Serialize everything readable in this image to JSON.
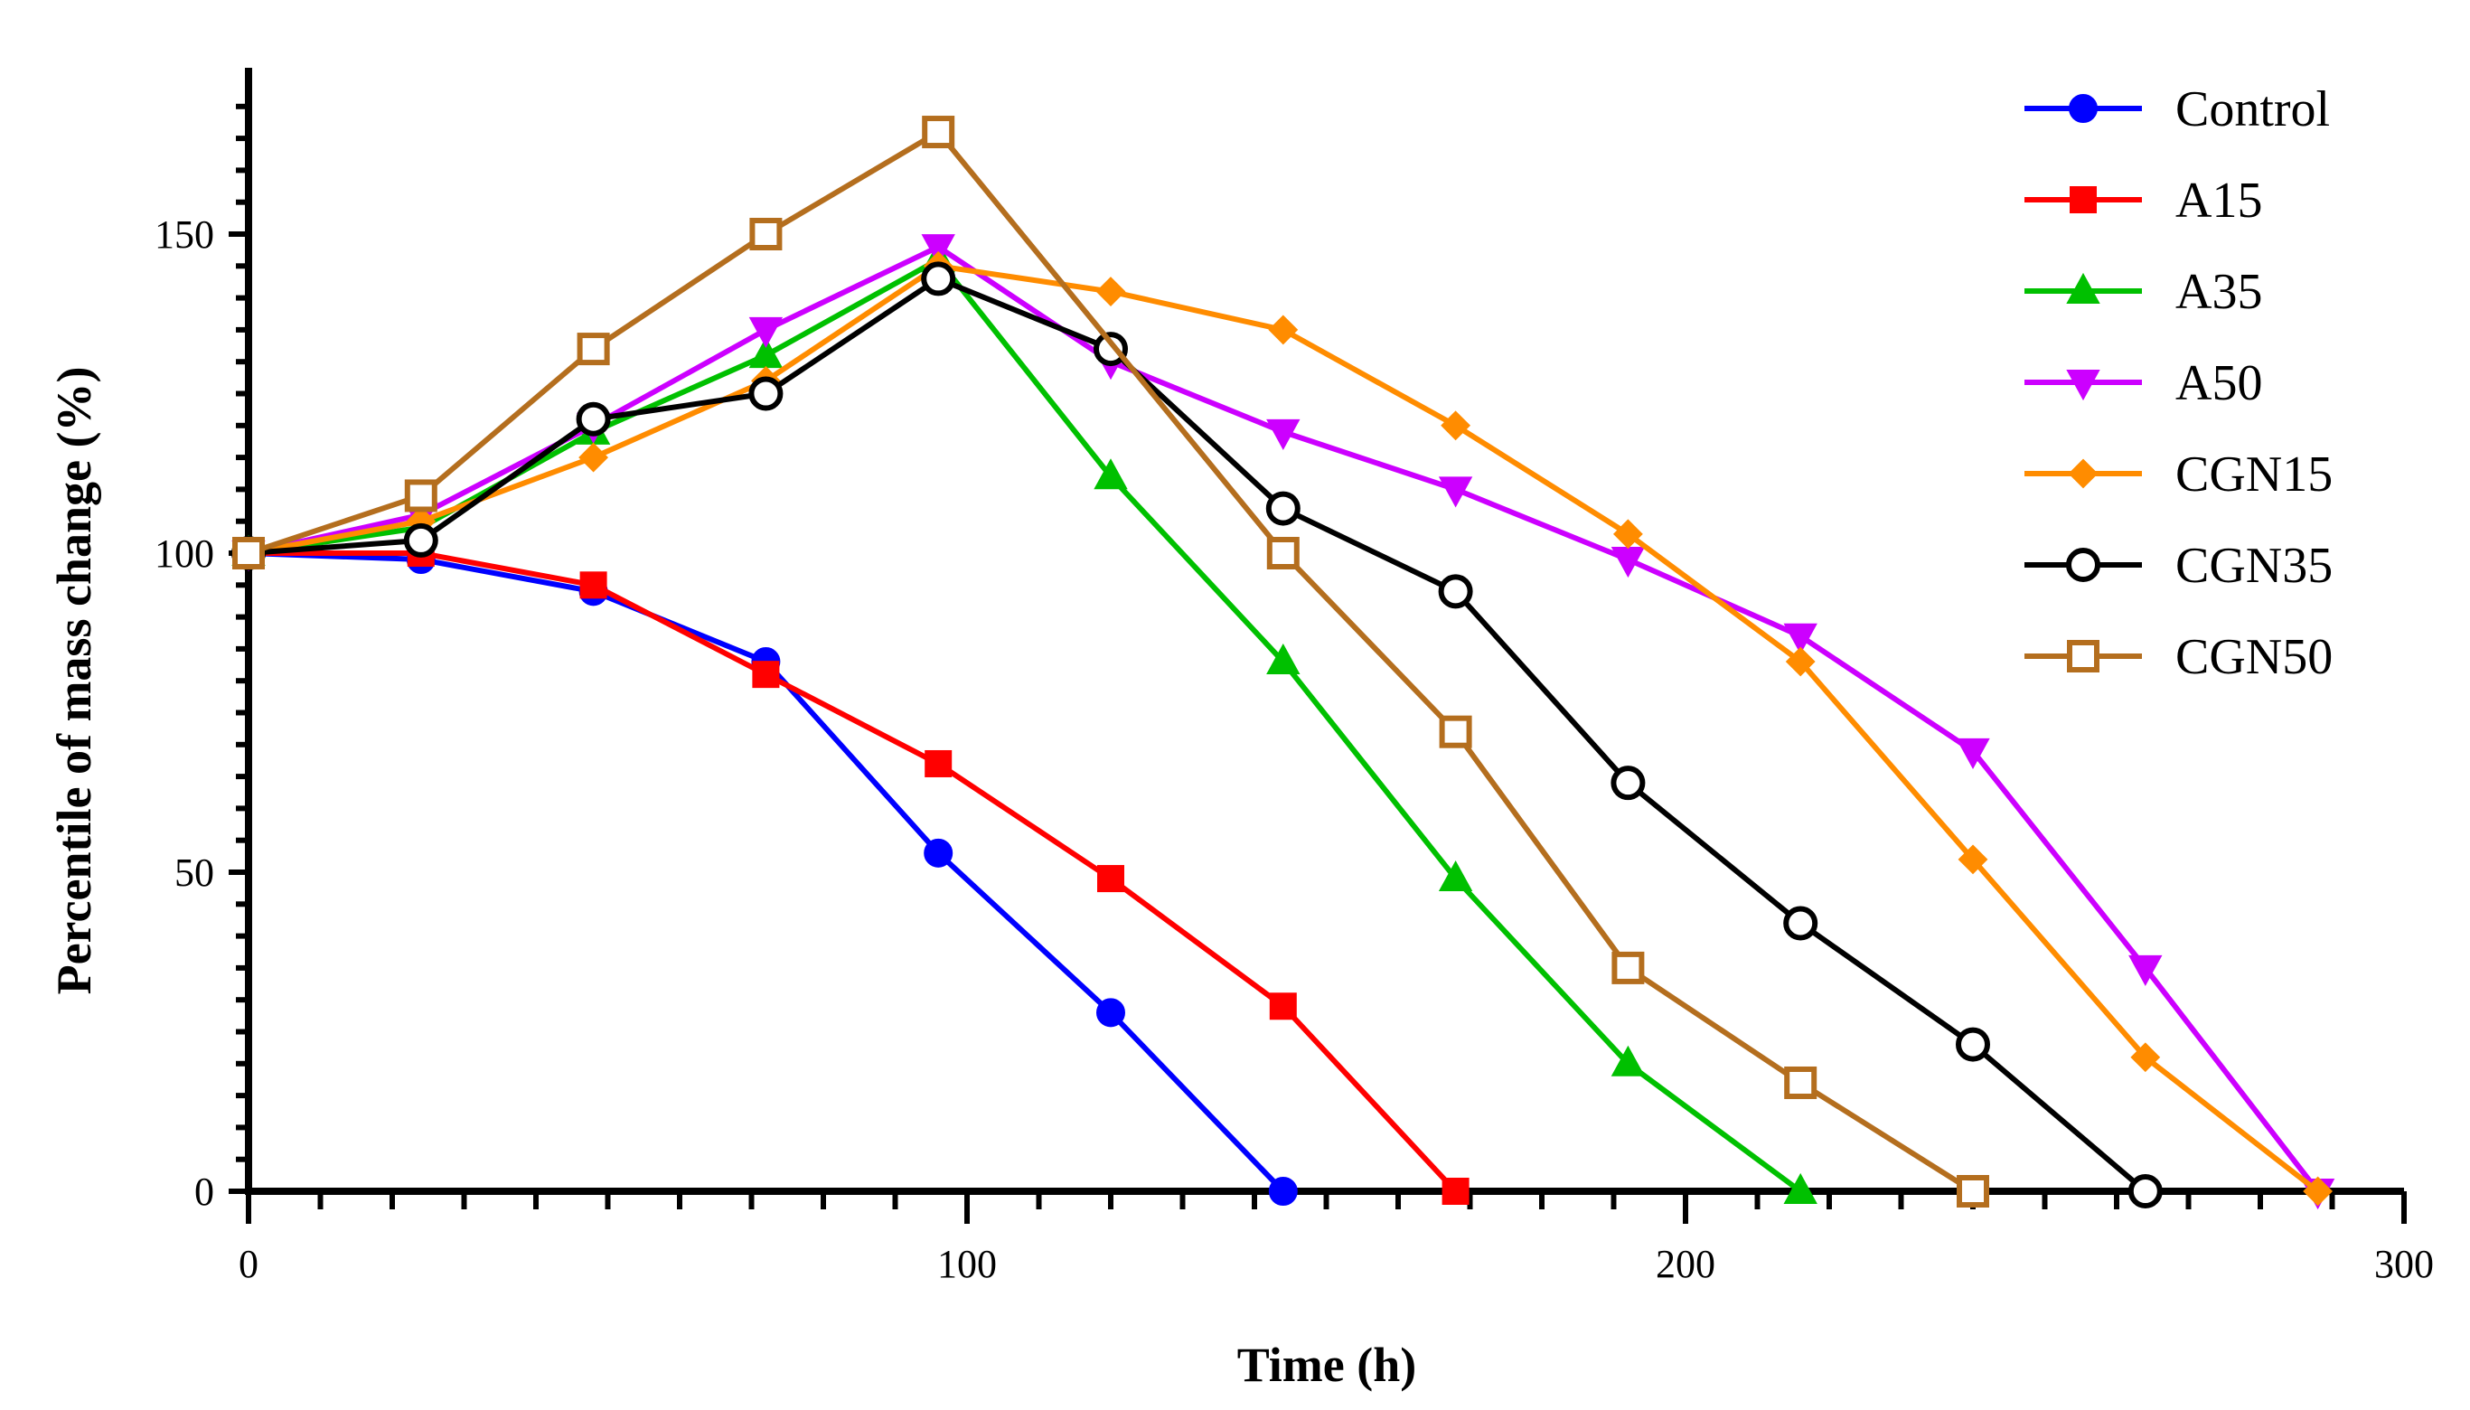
{
  "chart_data": {
    "type": "line",
    "title": "",
    "xlabel": "Time (h)",
    "ylabel": "Percentile of mass change  (%)",
    "xlim": [
      0,
      300
    ],
    "ylim": [
      0,
      175
    ],
    "xticks": [
      "0",
      "100",
      "200",
      "300"
    ],
    "yticks": [
      "0",
      "50",
      "100",
      "150"
    ],
    "legend_position": "top-right",
    "grid": false,
    "series": [
      {
        "name": "Control",
        "color": "#0000ff",
        "marker": "circle",
        "filled": true,
        "x": [
          0,
          24,
          48,
          72,
          96,
          120,
          144
        ],
        "y": [
          100,
          99,
          94,
          83,
          53,
          28,
          0
        ]
      },
      {
        "name": "A15",
        "color": "#ff0000",
        "marker": "square",
        "filled": true,
        "x": [
          0,
          24,
          48,
          72,
          96,
          120,
          144,
          168
        ],
        "y": [
          100,
          100,
          95,
          81,
          67,
          49,
          29,
          0
        ]
      },
      {
        "name": "A35",
        "color": "#00c000",
        "marker": "triangle-up",
        "filled": true,
        "x": [
          0,
          24,
          48,
          72,
          96,
          120,
          144,
          168,
          192,
          216
        ],
        "y": [
          100,
          104,
          119,
          131,
          146,
          112,
          83,
          49,
          20,
          0
        ]
      },
      {
        "name": "A50",
        "color": "#cc00ff",
        "marker": "triangle-down",
        "filled": true,
        "x": [
          0,
          24,
          48,
          72,
          96,
          120,
          144,
          168,
          192,
          216,
          240,
          264,
          288
        ],
        "y": [
          100,
          106,
          120,
          135,
          148,
          130,
          119,
          110,
          99,
          87,
          69,
          35,
          0
        ]
      },
      {
        "name": "CGN15",
        "color": "#ff8c00",
        "marker": "diamond",
        "filled": true,
        "x": [
          0,
          24,
          48,
          72,
          96,
          120,
          144,
          168,
          192,
          216,
          240,
          264,
          288
        ],
        "y": [
          100,
          105,
          115,
          127,
          145,
          141,
          135,
          120,
          103,
          83,
          52,
          21,
          0
        ]
      },
      {
        "name": "CGN35",
        "color": "#000000",
        "marker": "circle",
        "filled": false,
        "x": [
          0,
          24,
          48,
          72,
          96,
          120,
          144,
          168,
          192,
          216,
          240,
          264
        ],
        "y": [
          100,
          102,
          121,
          125,
          143,
          132,
          107,
          94,
          64,
          42,
          23,
          0
        ]
      },
      {
        "name": "CGN50",
        "color": "#b46e1e",
        "marker": "square",
        "filled": false,
        "x": [
          0,
          24,
          48,
          72,
          96,
          144,
          168,
          192,
          216,
          240
        ],
        "y": [
          100,
          109,
          132,
          150,
          166,
          100,
          72,
          35,
          17,
          0
        ]
      }
    ]
  }
}
